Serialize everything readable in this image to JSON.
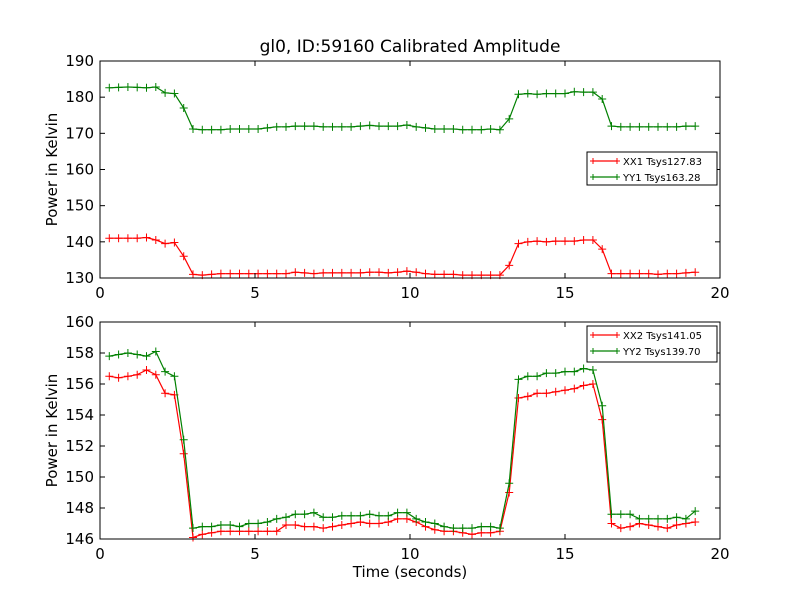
{
  "figure": {
    "title": "gl0, ID:59160 Calibrated Amplitude"
  },
  "chart_data": [
    {
      "type": "line",
      "title": "gl0, ID:59160 Calibrated Amplitude",
      "xlabel": "",
      "ylabel": "Power in Kelvin",
      "xlim": [
        0,
        20
      ],
      "ylim": [
        130,
        190
      ],
      "xticks": [
        0,
        5,
        10,
        15,
        20
      ],
      "yticks": [
        130,
        140,
        150,
        160,
        170,
        180,
        190
      ],
      "grid": false,
      "legend_position": "center-right",
      "x": [
        0.3,
        0.6,
        0.9,
        1.2,
        1.5,
        1.8,
        2.1,
        2.4,
        2.7,
        3.0,
        3.3,
        3.6,
        3.9,
        4.2,
        4.5,
        4.8,
        5.1,
        5.4,
        5.7,
        6.0,
        6.3,
        6.6,
        6.9,
        7.2,
        7.5,
        7.8,
        8.1,
        8.4,
        8.7,
        9.0,
        9.3,
        9.6,
        9.9,
        10.2,
        10.5,
        10.8,
        11.1,
        11.4,
        11.7,
        12.0,
        12.3,
        12.6,
        12.9,
        13.2,
        13.5,
        13.8,
        14.1,
        14.4,
        14.7,
        15.0,
        15.3,
        15.6,
        15.9,
        16.2,
        16.5,
        16.8,
        17.1,
        17.4,
        17.7,
        18.0,
        18.3,
        18.6,
        18.9,
        19.2
      ],
      "series": [
        {
          "name": "XX1 Tsys127.83",
          "color": "#ff0000",
          "values": [
            141.0,
            141.0,
            141.0,
            141.0,
            141.2,
            140.5,
            139.5,
            139.8,
            136.0,
            131.0,
            130.8,
            131.0,
            131.2,
            131.2,
            131.2,
            131.2,
            131.2,
            131.2,
            131.2,
            131.2,
            131.6,
            131.4,
            131.2,
            131.4,
            131.4,
            131.4,
            131.4,
            131.4,
            131.6,
            131.6,
            131.4,
            131.6,
            131.9,
            131.6,
            131.2,
            131.0,
            131.0,
            131.0,
            130.8,
            130.8,
            130.8,
            130.8,
            130.8,
            133.5,
            139.5,
            140.0,
            140.2,
            140.0,
            140.2,
            140.2,
            140.2,
            140.5,
            140.5,
            138.0,
            131.2,
            131.2,
            131.2,
            131.2,
            131.2,
            131.0,
            131.2,
            131.2,
            131.4,
            131.6
          ]
        },
        {
          "name": "YY1 Tsys163.28",
          "color": "#008000",
          "values": [
            182.6,
            182.7,
            182.8,
            182.7,
            182.6,
            182.8,
            181.2,
            181.0,
            177.0,
            171.2,
            171.0,
            171.0,
            171.0,
            171.2,
            171.2,
            171.2,
            171.2,
            171.5,
            171.8,
            171.8,
            172.0,
            172.0,
            172.0,
            171.8,
            171.8,
            171.8,
            171.8,
            172.0,
            172.2,
            172.0,
            172.0,
            172.0,
            172.3,
            171.8,
            171.5,
            171.2,
            171.2,
            171.2,
            171.0,
            171.0,
            171.0,
            171.2,
            171.0,
            174.0,
            180.8,
            181.0,
            180.8,
            181.0,
            181.0,
            181.0,
            181.5,
            181.4,
            181.4,
            179.5,
            172.0,
            171.8,
            171.8,
            171.8,
            171.8,
            171.8,
            171.8,
            171.8,
            172.0,
            172.0
          ]
        }
      ]
    },
    {
      "type": "line",
      "title": "",
      "xlabel": "Time (seconds)",
      "ylabel": "Power in Kelvin",
      "xlim": [
        0,
        20
      ],
      "ylim": [
        146,
        160
      ],
      "xticks": [
        0,
        5,
        10,
        15,
        20
      ],
      "yticks": [
        146,
        148,
        150,
        152,
        154,
        156,
        158,
        160
      ],
      "grid": false,
      "legend_position": "top-right",
      "x": [
        0.3,
        0.6,
        0.9,
        1.2,
        1.5,
        1.8,
        2.1,
        2.4,
        2.7,
        3.0,
        3.3,
        3.6,
        3.9,
        4.2,
        4.5,
        4.8,
        5.1,
        5.4,
        5.7,
        6.0,
        6.3,
        6.6,
        6.9,
        7.2,
        7.5,
        7.8,
        8.1,
        8.4,
        8.7,
        9.0,
        9.3,
        9.6,
        9.9,
        10.2,
        10.5,
        10.8,
        11.1,
        11.4,
        11.7,
        12.0,
        12.3,
        12.6,
        12.9,
        13.2,
        13.5,
        13.8,
        14.1,
        14.4,
        14.7,
        15.0,
        15.3,
        15.6,
        15.9,
        16.2,
        16.5,
        16.8,
        17.1,
        17.4,
        17.7,
        18.0,
        18.3,
        18.6,
        18.9,
        19.2
      ],
      "series": [
        {
          "name": "XX2 Tsys141.05",
          "color": "#ff0000",
          "values": [
            156.5,
            156.4,
            156.5,
            156.6,
            156.9,
            156.6,
            155.4,
            155.3,
            151.5,
            146.1,
            146.3,
            146.4,
            146.5,
            146.5,
            146.5,
            146.5,
            146.5,
            146.5,
            146.5,
            146.9,
            146.9,
            146.8,
            146.8,
            146.7,
            146.8,
            146.9,
            147.0,
            147.1,
            147.0,
            147.0,
            147.1,
            147.3,
            147.3,
            147.1,
            146.8,
            146.6,
            146.5,
            146.5,
            146.4,
            146.3,
            146.4,
            146.4,
            146.5,
            149.0,
            155.1,
            155.2,
            155.4,
            155.4,
            155.5,
            155.6,
            155.7,
            155.9,
            156.0,
            153.7,
            147.0,
            146.7,
            146.8,
            147.0,
            146.9,
            146.8,
            146.7,
            146.9,
            147.0,
            147.1
          ]
        },
        {
          "name": "YY2 Tsys139.70",
          "color": "#008000",
          "values": [
            157.8,
            157.9,
            158.0,
            157.9,
            157.8,
            158.1,
            156.8,
            156.5,
            152.4,
            146.7,
            146.8,
            146.8,
            146.9,
            146.9,
            146.8,
            147.0,
            147.0,
            147.1,
            147.3,
            147.4,
            147.6,
            147.6,
            147.7,
            147.4,
            147.4,
            147.5,
            147.5,
            147.5,
            147.6,
            147.5,
            147.5,
            147.7,
            147.7,
            147.3,
            147.1,
            147.0,
            146.8,
            146.7,
            146.7,
            146.7,
            146.8,
            146.8,
            146.7,
            149.6,
            156.3,
            156.5,
            156.5,
            156.7,
            156.7,
            156.8,
            156.8,
            157.0,
            156.9,
            154.6,
            147.6,
            147.6,
            147.6,
            147.3,
            147.3,
            147.3,
            147.3,
            147.4,
            147.3,
            147.8
          ]
        }
      ]
    }
  ]
}
